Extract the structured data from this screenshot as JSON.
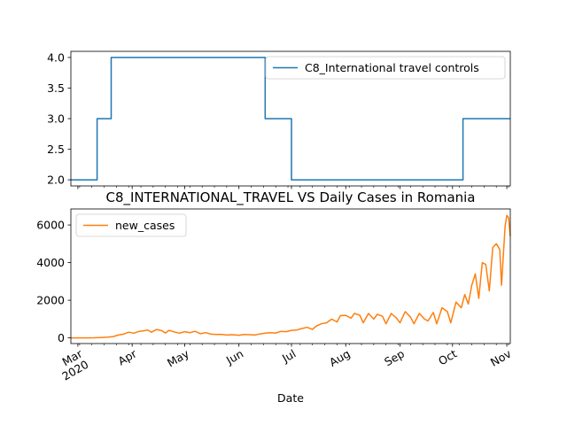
{
  "chart_data": [
    {
      "type": "line",
      "title": "",
      "xlabel": "",
      "ylabel": "",
      "x_range": [
        "2020-02-26",
        "2020-11-03"
      ],
      "ylim": [
        1.9,
        4.1
      ],
      "yticks": [
        "2.0",
        "2.5",
        "3.0",
        "3.5",
        "4.0"
      ],
      "legend_position": "upper right",
      "series": [
        {
          "name": "C8_International travel controls",
          "color": "#1f77b4",
          "step": true,
          "points": [
            [
              "2020-02-26",
              2
            ],
            [
              "2020-03-12",
              3
            ],
            [
              "2020-03-20",
              4
            ],
            [
              "2020-06-16",
              3
            ],
            [
              "2020-07-01",
              2
            ],
            [
              "2020-10-07",
              3
            ],
            [
              "2020-11-03",
              3
            ]
          ]
        }
      ]
    },
    {
      "type": "line",
      "title": "C8_INTERNATIONAL_TRAVEL VS Daily Cases in Romania",
      "xlabel": "Date",
      "ylabel": "",
      "x_range": [
        "2020-02-26",
        "2020-11-03"
      ],
      "ylim": [
        -300,
        6850
      ],
      "yticks": [
        "0",
        "2000",
        "4000",
        "6000"
      ],
      "xticks": [
        "Mar\n2020",
        "Apr",
        "May",
        "Jun",
        "Jul",
        "Aug",
        "Sep",
        "Oct",
        "Nov"
      ],
      "legend_position": "upper left",
      "series": [
        {
          "name": "new_cases",
          "color": "#ff7f0e",
          "points": [
            [
              "2020-02-26",
              0
            ],
            [
              "2020-03-05",
              2
            ],
            [
              "2020-03-10",
              8
            ],
            [
              "2020-03-14",
              20
            ],
            [
              "2020-03-18",
              40
            ],
            [
              "2020-03-21",
              60
            ],
            [
              "2020-03-24",
              150
            ],
            [
              "2020-03-27",
              200
            ],
            [
              "2020-03-30",
              300
            ],
            [
              "2020-04-02",
              250
            ],
            [
              "2020-04-05",
              350
            ],
            [
              "2020-04-08",
              380
            ],
            [
              "2020-04-10",
              420
            ],
            [
              "2020-04-12",
              300
            ],
            [
              "2020-04-15",
              450
            ],
            [
              "2020-04-18",
              380
            ],
            [
              "2020-04-20",
              260
            ],
            [
              "2020-04-22",
              400
            ],
            [
              "2020-04-25",
              320
            ],
            [
              "2020-04-28",
              250
            ],
            [
              "2020-05-01",
              330
            ],
            [
              "2020-05-04",
              280
            ],
            [
              "2020-05-07",
              350
            ],
            [
              "2020-05-10",
              220
            ],
            [
              "2020-05-13",
              280
            ],
            [
              "2020-05-16",
              200
            ],
            [
              "2020-05-19",
              180
            ],
            [
              "2020-05-22",
              190
            ],
            [
              "2020-05-25",
              150
            ],
            [
              "2020-05-28",
              170
            ],
            [
              "2020-06-01",
              140
            ],
            [
              "2020-06-04",
              180
            ],
            [
              "2020-06-07",
              170
            ],
            [
              "2020-06-10",
              150
            ],
            [
              "2020-06-13",
              210
            ],
            [
              "2020-06-16",
              250
            ],
            [
              "2020-06-19",
              280
            ],
            [
              "2020-06-22",
              260
            ],
            [
              "2020-06-25",
              350
            ],
            [
              "2020-06-28",
              330
            ],
            [
              "2020-07-01",
              400
            ],
            [
              "2020-07-04",
              420
            ],
            [
              "2020-07-07",
              500
            ],
            [
              "2020-07-10",
              560
            ],
            [
              "2020-07-13",
              450
            ],
            [
              "2020-07-15",
              620
            ],
            [
              "2020-07-18",
              750
            ],
            [
              "2020-07-21",
              800
            ],
            [
              "2020-07-24",
              1000
            ],
            [
              "2020-07-27",
              850
            ],
            [
              "2020-07-29",
              1180
            ],
            [
              "2020-08-01",
              1200
            ],
            [
              "2020-08-04",
              1050
            ],
            [
              "2020-08-06",
              1300
            ],
            [
              "2020-08-09",
              1200
            ],
            [
              "2020-08-11",
              800
            ],
            [
              "2020-08-14",
              1300
            ],
            [
              "2020-08-17",
              1000
            ],
            [
              "2020-08-19",
              1250
            ],
            [
              "2020-08-22",
              1150
            ],
            [
              "2020-08-24",
              750
            ],
            [
              "2020-08-27",
              1300
            ],
            [
              "2020-08-30",
              1050
            ],
            [
              "2020-09-01",
              800
            ],
            [
              "2020-09-04",
              1400
            ],
            [
              "2020-09-07",
              1100
            ],
            [
              "2020-09-09",
              750
            ],
            [
              "2020-09-12",
              1300
            ],
            [
              "2020-09-15",
              1000
            ],
            [
              "2020-09-17",
              900
            ],
            [
              "2020-09-20",
              1350
            ],
            [
              "2020-09-22",
              750
            ],
            [
              "2020-09-25",
              1600
            ],
            [
              "2020-09-28",
              1400
            ],
            [
              "2020-09-30",
              800
            ],
            [
              "2020-10-03",
              1900
            ],
            [
              "2020-10-06",
              1600
            ],
            [
              "2020-10-08",
              2300
            ],
            [
              "2020-10-10",
              1800
            ],
            [
              "2020-10-12",
              2800
            ],
            [
              "2020-10-14",
              3400
            ],
            [
              "2020-10-16",
              2100
            ],
            [
              "2020-10-18",
              4000
            ],
            [
              "2020-10-20",
              3900
            ],
            [
              "2020-10-22",
              2500
            ],
            [
              "2020-10-24",
              4800
            ],
            [
              "2020-10-26",
              5000
            ],
            [
              "2020-10-28",
              4700
            ],
            [
              "2020-10-29",
              2800
            ],
            [
              "2020-10-31",
              5900
            ],
            [
              "2020-11-01",
              6500
            ],
            [
              "2020-11-02",
              6400
            ],
            [
              "2020-11-03",
              5400
            ]
          ]
        }
      ]
    }
  ]
}
